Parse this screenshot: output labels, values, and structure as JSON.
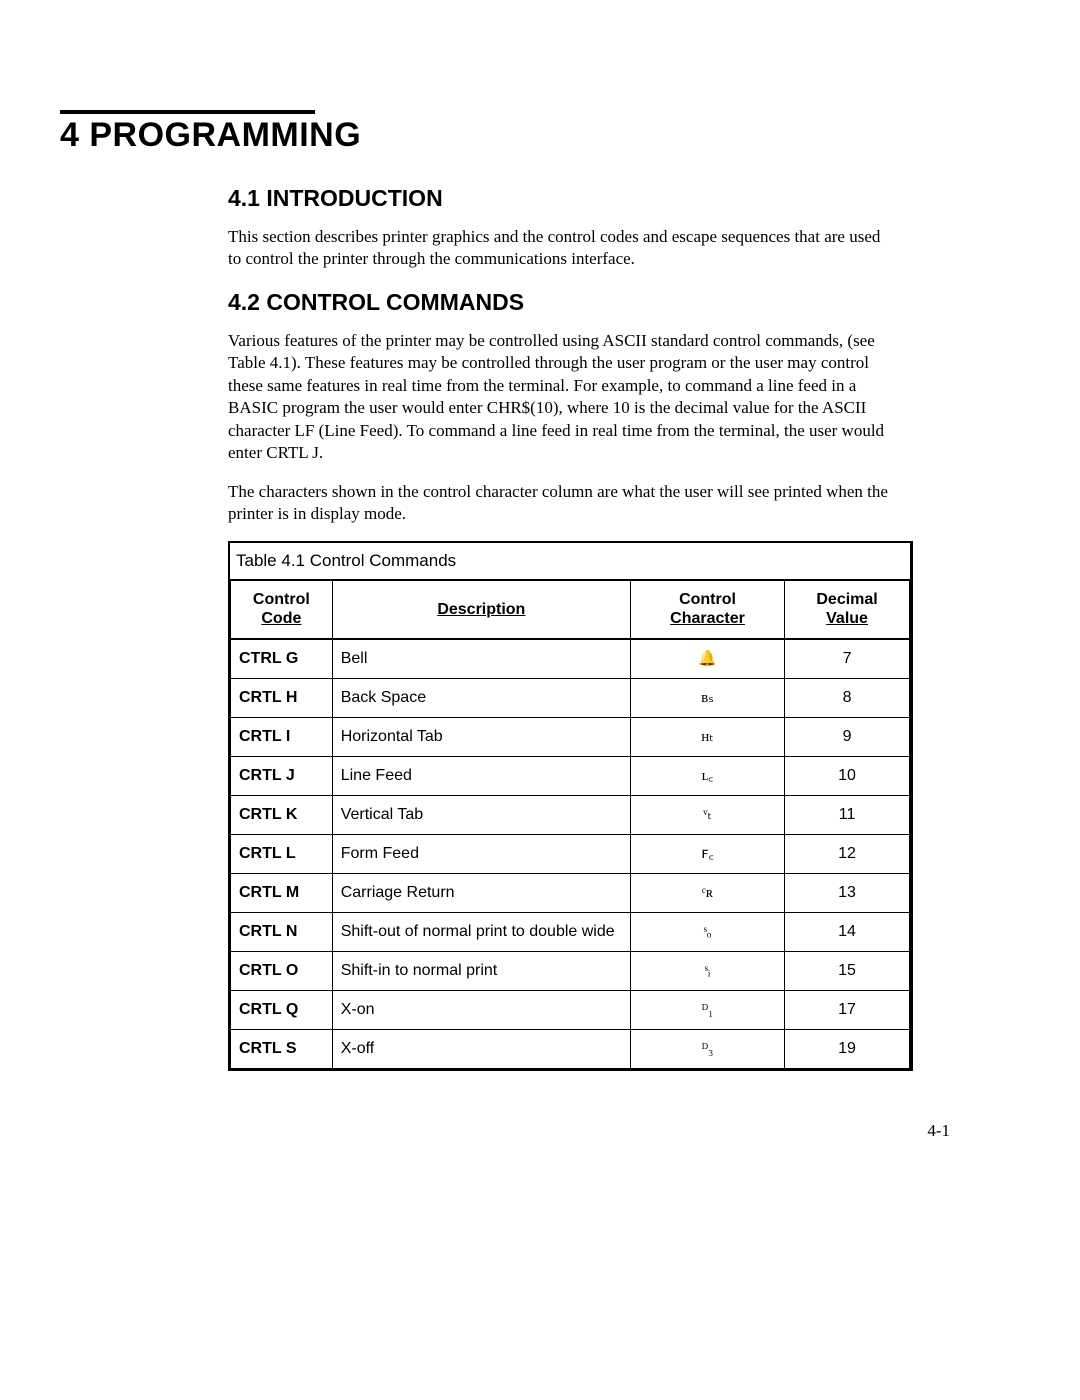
{
  "chapter": {
    "title": "4 PROGRAMMING"
  },
  "sections": {
    "intro": {
      "heading": "4.1 INTRODUCTION",
      "para": "This section describes printer graphics and the control codes and escape sequences that are used to control the printer through the communications interface."
    },
    "commands": {
      "heading": "4.2 CONTROL COMMANDS",
      "para1": "Various features of the printer may be controlled using ASCII standard control commands, (see Table 4.1). These features may be controlled through the user program or the user may control these same features in real time from the terminal. For example, to command a line feed in a BASIC program the user would enter CHR$(10), where 10 is the decimal value for the ASCII character LF (Line Feed). To command a line feed in real time from the terminal, the user would enter CRTL J.",
      "para2": "The characters shown in the control character column are what the user will see printed when the printer is in display mode."
    }
  },
  "table": {
    "title": "Table 4.1  Control Commands",
    "headers": {
      "code_l1": "Control",
      "code_l2": "Code",
      "desc": "Description",
      "chr_l1": "Control",
      "chr_l2": "Character",
      "val_l1": "Decimal",
      "val_l2": "Value"
    },
    "rows": [
      {
        "code": "CTRL G",
        "desc": "Bell",
        "chr": "🔔",
        "val": "7"
      },
      {
        "code": "CRTL H",
        "desc": "Back Space",
        "chr": "ʙₛ",
        "val": "8"
      },
      {
        "code": "CRTL I",
        "desc": "Horizontal Tab",
        "chr": "ʜₜ",
        "val": "9"
      },
      {
        "code": "CRTL J",
        "desc": "Line Feed",
        "chr": "ʟ꜀",
        "val": "10"
      },
      {
        "code": "CRTL K",
        "desc": "Vertical Tab",
        "chr": "ᵛₜ",
        "val": "11"
      },
      {
        "code": "CRTL L",
        "desc": "Form Feed",
        "chr": "ꜰ꜀",
        "val": "12"
      },
      {
        "code": "CRTL M",
        "desc": "Carriage Return",
        "chr": "ᶜʀ",
        "val": "13"
      },
      {
        "code": "CRTL N",
        "desc": "Shift-out of normal print to double wide",
        "chr": "ˢₒ",
        "val": "14"
      },
      {
        "code": "CRTL O",
        "desc": "Shift-in to normal print",
        "chr": "ˢᵢ",
        "val": "15"
      },
      {
        "code": "CRTL Q",
        "desc": "X-on",
        "chr": "ᴰ₁",
        "val": "17"
      },
      {
        "code": "CRTL S",
        "desc": "X-off",
        "chr": "ᴰ₃",
        "val": "19"
      }
    ]
  },
  "page_number": "4-1"
}
